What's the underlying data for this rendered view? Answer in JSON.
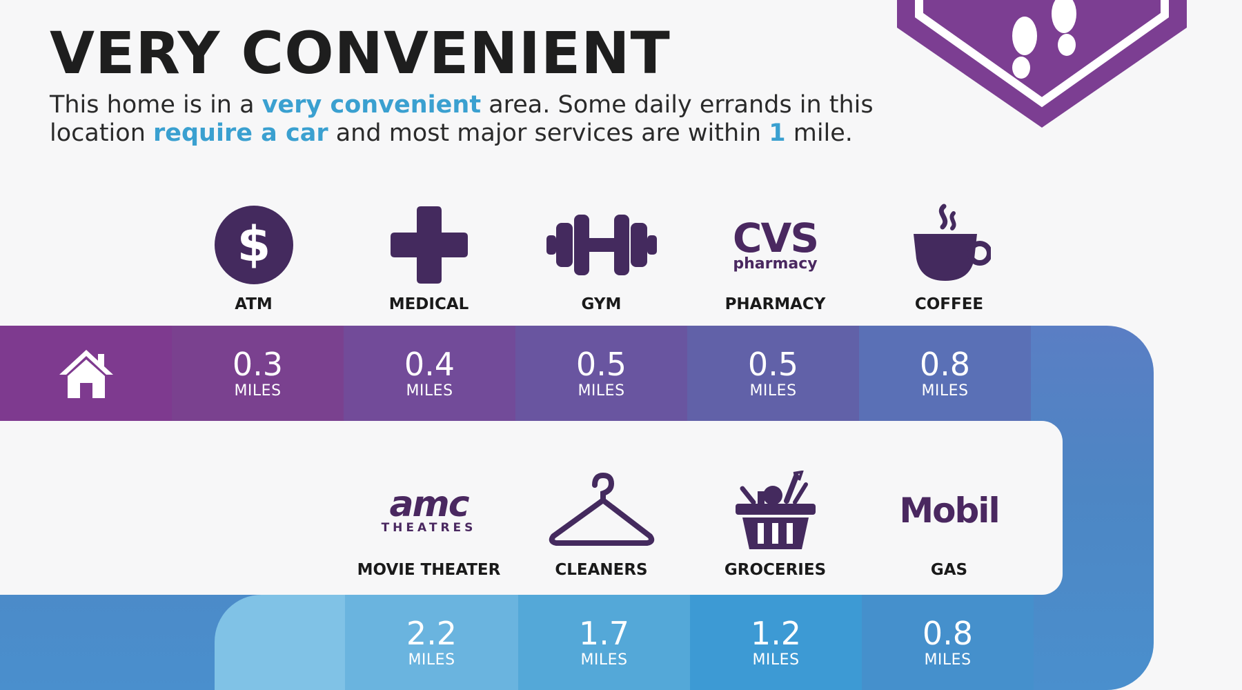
{
  "header": {
    "title": "VERY CONVENIENT",
    "desc_1": "This home is in a ",
    "desc_hl_1": "very convenient",
    "desc_2": " area. Some daily errands in this location ",
    "desc_hl_2": "require a car",
    "desc_3": " and most major services are within ",
    "desc_hl_3": "1",
    "desc_4": " mile."
  },
  "colors": {
    "accent_blue": "#3aa0d0",
    "purple": "#7c3e92",
    "icon_dark": "#442a5e",
    "blue": "#4a8fcd"
  },
  "top_row": [
    {
      "label": "ATM",
      "icon": "dollar-circle-icon",
      "distance": "0.3",
      "unit": "MILES"
    },
    {
      "label": "MEDICAL",
      "icon": "medical-cross-icon",
      "distance": "0.4",
      "unit": "MILES"
    },
    {
      "label": "GYM",
      "icon": "dumbbell-icon",
      "distance": "0.5",
      "unit": "MILES"
    },
    {
      "label": "PHARMACY",
      "icon": "cvs-logo",
      "logo_line1": "CVS",
      "logo_line2": "pharmacy",
      "distance": "0.5",
      "unit": "MILES"
    },
    {
      "label": "COFFEE",
      "icon": "coffee-cup-icon",
      "distance": "0.8",
      "unit": "MILES"
    }
  ],
  "bottom_row": [
    {
      "label": "MOVIE THEATER",
      "icon": "amc-logo",
      "logo_line1": "amc",
      "logo_line2": "THEATRES",
      "distance": "2.2",
      "unit": "MILES"
    },
    {
      "label": "CLEANERS",
      "icon": "hanger-icon",
      "distance": "1.7",
      "unit": "MILES"
    },
    {
      "label": "GROCERIES",
      "icon": "grocery-basket-icon",
      "distance": "1.2",
      "unit": "MILES"
    },
    {
      "label": "GAS",
      "icon": "mobil-logo",
      "logo_line1": "Mobil",
      "distance": "0.8",
      "unit": "MILES"
    }
  ]
}
